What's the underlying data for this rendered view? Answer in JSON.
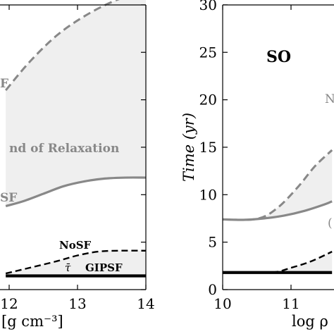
{
  "chart_data": [
    {
      "type": "line",
      "panel": "left (cropped)",
      "x_ticks": [
        "12",
        "13",
        "14"
      ],
      "xlim": [
        11.95,
        14.0
      ],
      "ylim": [
        0,
        30
      ],
      "xlabel_fragment": "[g cm⁻³]",
      "series": [
        {
          "name": "",
          "style": "dashed-gray",
          "x": [
            11.95,
            12.3,
            12.7,
            13.1,
            13.5,
            13.8,
            14.0
          ],
          "y": [
            21.0,
            24.0,
            26.8,
            28.8,
            30.3,
            31.0,
            31.1
          ]
        },
        {
          "name": "",
          "style": "solid-gray",
          "x": [
            11.95,
            12.2,
            12.5,
            12.8,
            13.1,
            13.4,
            13.7,
            14.0
          ],
          "y": [
            8.8,
            9.3,
            10.1,
            10.9,
            11.4,
            11.7,
            11.8,
            11.8
          ]
        },
        {
          "name": "NoSF",
          "style": "dashed-black",
          "x": [
            11.95,
            12.3,
            12.7,
            13.0,
            13.3,
            13.6,
            14.0
          ],
          "y": [
            1.7,
            2.3,
            3.0,
            3.6,
            4.0,
            4.1,
            4.1
          ]
        },
        {
          "name": "GIPSF",
          "style": "solid-black",
          "x": [
            11.95,
            14.0
          ],
          "y": [
            1.45,
            1.45
          ]
        }
      ],
      "annotations": {
        "top_fragment": "F",
        "band": "nd of Relaxation",
        "mid_fragment": "SF",
        "nosf": "NoSF",
        "tau": "τ̄",
        "gipsf": "GIPSF"
      }
    },
    {
      "type": "line",
      "panel": "right (cropped)",
      "title": "SO",
      "ylabel": "Time (yr)",
      "xlabel_fragment": "log ρ",
      "x_ticks": [
        "10",
        "11"
      ],
      "y_ticks": [
        "0",
        "5",
        "10",
        "15",
        "20",
        "25",
        "30"
      ],
      "xlim": [
        10,
        11.6
      ],
      "ylim": [
        0,
        30
      ],
      "series": [
        {
          "name": "",
          "style": "dashed-gray",
          "x": [
            10.0,
            10.5,
            10.8,
            11.1,
            11.35,
            11.6
          ],
          "y": [
            7.4,
            7.45,
            8.6,
            10.8,
            13.0,
            14.7
          ]
        },
        {
          "name": "",
          "style": "solid-gray",
          "x": [
            10.0,
            10.3,
            10.6,
            10.9,
            11.2,
            11.5,
            11.6
          ],
          "y": [
            7.4,
            7.35,
            7.5,
            7.8,
            8.3,
            9.0,
            9.3
          ]
        },
        {
          "name": "",
          "style": "dashed-black",
          "x": [
            10.0,
            10.7,
            11.0,
            11.3,
            11.6
          ],
          "y": [
            1.8,
            1.8,
            2.3,
            3.0,
            4.0
          ]
        },
        {
          "name": "",
          "style": "solid-black",
          "x": [
            10.0,
            11.6
          ],
          "y": [
            1.8,
            1.8
          ]
        }
      ],
      "annotations": {
        "edge_top": "N",
        "edge_mid": "("
      }
    }
  ]
}
